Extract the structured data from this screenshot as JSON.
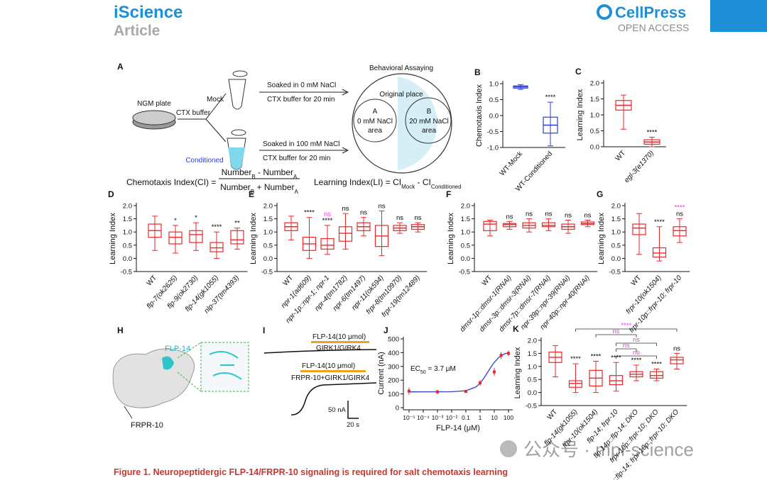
{
  "header": {
    "journal": "iScience",
    "type": "Article",
    "publisher": "CellPress",
    "access": "OPEN ACCESS"
  },
  "panel_a": {
    "letter": "A",
    "plate": "NGM plate",
    "buffer": "CTX buffer",
    "mock": "Mock",
    "conditioned": "Conditioned",
    "soak1": "Soaked in 0 mM NaCl",
    "soak1_time": "CTX buffer for 20 min",
    "soak2": "Soaked in 100 mM NaCl",
    "soak2_time": "CTX buffer for 20 min",
    "assay": "Behavioral Assaying",
    "origin": "Original place",
    "area_a": [
      "A",
      "0 mM NaCl",
      "area"
    ],
    "area_b": [
      "B",
      "20 mM NaCl",
      "area"
    ],
    "ci_lhs": "Chemotaxis Index(CI) =",
    "ci_num": [
      "Number",
      "B",
      " - Number",
      "A"
    ],
    "ci_den": [
      "Number",
      "B",
      " + Number",
      "A"
    ],
    "li": [
      "Learning Index(LI) = CI",
      "Mock",
      " - CI",
      "Conditioned"
    ]
  },
  "panels": {
    "B": {
      "letter": "B",
      "ylabel": "Chemotaxis Index",
      "color": "#2c3fd0",
      "ylim": [
        -1,
        1
      ],
      "yticks": [
        {
          "value": 1,
          "label": "1.0"
        },
        0.5,
        {
          "value": 0,
          "label": "0.0"
        },
        -0.5,
        {
          "value": -1,
          "label": "-1.0"
        }
      ],
      "groups": [
        {
          "label": "WT-Mock",
          "stats": [
            0.82,
            0.86,
            0.9,
            0.93,
            0.97
          ],
          "sig": []
        },
        {
          "label": "WT-Conditioned",
          "stats": [
            -0.95,
            -0.55,
            -0.3,
            -0.05,
            0.42
          ],
          "sig": [
            {
              "label": "****",
              "color": "#000000"
            }
          ]
        }
      ]
    },
    "C": {
      "letter": "C",
      "ylabel": "Learning Index",
      "color": "#e8282b",
      "ylim": [
        0,
        2
      ],
      "yticks": [
        {
          "value": 2,
          "label": "2.0"
        },
        1.5,
        {
          "value": 1,
          "label": "1.0"
        },
        0.5,
        {
          "value": 0,
          "label": "0.0"
        }
      ],
      "groups": [
        {
          "label": "WT",
          "stats": [
            0.55,
            1.15,
            1.3,
            1.45,
            1.62
          ],
          "sig": []
        },
        {
          "label": "egl-3(e1370)",
          "stats": [
            0,
            0.08,
            0.15,
            0.22,
            0.3
          ],
          "sig": [
            {
              "label": "****",
              "color": "#000000"
            }
          ]
        }
      ]
    },
    "D": {
      "letter": "D",
      "ylabel": "Learning Index",
      "color": "#e8282b",
      "ylim": [
        -0.5,
        2
      ],
      "yticks": [
        {
          "value": 2,
          "label": "2.0"
        },
        1.5,
        {
          "value": 1,
          "label": "1.0"
        },
        0.5,
        {
          "value": 0,
          "label": "0.0"
        },
        -0.5
      ],
      "groups": [
        {
          "label": "WT",
          "stats": [
            0.3,
            0.8,
            1.05,
            1.3,
            1.6
          ],
          "sig": []
        },
        {
          "label": "flp-7(ok2625)",
          "stats": [
            0.2,
            0.55,
            0.8,
            1.0,
            1.25
          ],
          "sig": [
            {
              "label": "*",
              "color": "#000000"
            }
          ]
        },
        {
          "label": "flp-9(ok2730)",
          "stats": [
            0.3,
            0.6,
            0.9,
            1.05,
            1.35
          ],
          "sig": [
            {
              "label": "*",
              "color": "#000000"
            }
          ]
        },
        {
          "label": "flp-14(gk1055)",
          "stats": [
            0,
            0.25,
            0.4,
            0.6,
            1.0
          ],
          "sig": [
            {
              "label": "****",
              "color": "#000000"
            }
          ]
        },
        {
          "label": "nlp-37(tm4393)",
          "stats": [
            0.35,
            0.55,
            0.7,
            1.05,
            1.15
          ],
          "sig": [
            {
              "label": "**",
              "color": "#000000"
            }
          ]
        }
      ]
    },
    "E": {
      "letter": "E",
      "ylabel": "Learning Index",
      "color": "#e8282b",
      "ylim": [
        -0.5,
        2
      ],
      "yticks": [
        {
          "value": 2,
          "label": "2.0"
        },
        1.5,
        {
          "value": 1,
          "label": "1.0"
        },
        0.5,
        {
          "value": 0,
          "label": "0.0"
        },
        -0.5
      ],
      "groups": [
        {
          "label": "WT",
          "stats": [
            0.7,
            1.05,
            1.2,
            1.35,
            1.6
          ],
          "sig": []
        },
        {
          "label": "npr-1(ad609)",
          "stats": [
            0,
            0.3,
            0.55,
            0.8,
            1.55
          ],
          "sig": [
            {
              "label": "****",
              "color": "#000000"
            }
          ]
        },
        {
          "label": "npr-1p::npr-1; npr-1",
          "stats": [
            0.15,
            0.35,
            0.5,
            0.75,
            1.25
          ],
          "sig": [
            {
              "label": "****",
              "color": "#000000"
            },
            {
              "label": "ns",
              "color": "#e040e0"
            }
          ]
        },
        {
          "label": "npr-4(tm1782)",
          "stats": [
            0.35,
            0.65,
            0.95,
            1.2,
            1.7
          ],
          "sig": [
            {
              "label": "ns",
              "color": "#000000"
            }
          ]
        },
        {
          "label": "npr-6(tm1497)",
          "stats": [
            0.85,
            1.05,
            1.2,
            1.35,
            1.55
          ],
          "sig": [
            {
              "label": "ns",
              "color": "#000000"
            }
          ]
        },
        {
          "label": "npr-11(ok594)",
          "stats": [
            0.1,
            0.45,
            0.85,
            1.25,
            1.8
          ],
          "sig": [
            {
              "label": "ns",
              "color": "#000000"
            }
          ]
        },
        {
          "label": "frpr-8(tm10970)",
          "stats": [
            0.95,
            1.05,
            1.15,
            1.25,
            1.35
          ],
          "sig": [
            {
              "label": "ns",
              "color": "#000000"
            }
          ]
        },
        {
          "label": "frpr-19(tm12489)",
          "stats": [
            1.0,
            1.1,
            1.2,
            1.28,
            1.35
          ],
          "sig": [
            {
              "label": "ns",
              "color": "#000000"
            }
          ]
        }
      ]
    },
    "F": {
      "letter": "F",
      "ylabel": "Learning Index",
      "color": "#e8282b",
      "ylim": [
        -0.5,
        2
      ],
      "yticks": [
        {
          "value": 2,
          "label": "2.0"
        },
        1.5,
        {
          "value": 1,
          "label": "1.0"
        },
        0.5,
        {
          "value": 0,
          "label": "0.0"
        },
        -0.5
      ],
      "groups": [
        {
          "label": "WT",
          "stats": [
            0.85,
            1.05,
            1.3,
            1.4,
            1.45
          ],
          "sig": []
        },
        {
          "label": "dmsr-1p::dmsr-1(RNAi)",
          "stats": [
            1.1,
            1.2,
            1.28,
            1.32,
            1.4
          ],
          "sig": [
            {
              "label": "ns",
              "color": "#000000"
            }
          ]
        },
        {
          "label": "dmsr-3p::dmsr-3(RNAi)",
          "stats": [
            1.0,
            1.15,
            1.25,
            1.35,
            1.5
          ],
          "sig": [
            {
              "label": "ns",
              "color": "#000000"
            }
          ]
        },
        {
          "label": "dmsr-7p::dmsr-7(RNAi)",
          "stats": [
            1.05,
            1.2,
            1.25,
            1.35,
            1.5
          ],
          "sig": [
            {
              "label": "ns",
              "color": "#000000"
            }
          ]
        },
        {
          "label": "npr-39p::npr-39(RNAi)",
          "stats": [
            0.95,
            1.1,
            1.2,
            1.3,
            1.45
          ],
          "sig": [
            {
              "label": "ns",
              "color": "#000000"
            }
          ]
        },
        {
          "label": "npr-40p::npr-40(RNAi)",
          "stats": [
            1.2,
            1.28,
            1.32,
            1.38,
            1.45
          ],
          "sig": [
            {
              "label": "ns",
              "color": "#000000"
            }
          ]
        }
      ]
    },
    "G": {
      "letter": "G",
      "ylabel": "Learning Index",
      "color": "#e8282b",
      "ylim": [
        -0.5,
        2
      ],
      "yticks": [
        {
          "value": 2,
          "label": "2.0"
        },
        1.5,
        {
          "value": 1,
          "label": "1.0"
        },
        0.5,
        {
          "value": 0,
          "label": "0.0"
        },
        -0.5
      ],
      "groups": [
        {
          "label": "WT",
          "stats": [
            0.15,
            0.9,
            1.15,
            1.3,
            1.7
          ],
          "sig": []
        },
        {
          "label": "frpr-10(ok1504)",
          "stats": [
            -0.1,
            0.05,
            0.2,
            0.4,
            1.2
          ],
          "sig": [
            {
              "label": "****",
              "color": "#000000"
            }
          ]
        },
        {
          "label": "frpr-10p::frpr-10; frpr-10",
          "stats": [
            0.6,
            0.85,
            1.05,
            1.2,
            1.5
          ],
          "sig": [
            {
              "label": "ns",
              "color": "#000000"
            },
            {
              "label": "****",
              "color": "#e040e0"
            }
          ]
        }
      ]
    },
    "K": {
      "letter": "K",
      "ylabel": "Learning Index",
      "color": "#e8282b",
      "ylim": [
        -0.5,
        2
      ],
      "yticks": [
        {
          "value": 2,
          "label": "2.0"
        },
        1.5,
        {
          "value": 1,
          "label": "1.0"
        },
        0.5,
        {
          "value": 0,
          "label": "0.0"
        },
        -0.5
      ],
      "groups": [
        {
          "label": "WT",
          "stats": [
            0.6,
            1.15,
            1.35,
            1.55,
            1.8
          ],
          "sig": []
        },
        {
          "label": "flp-14(gk1055)",
          "stats": [
            0,
            0.2,
            0.35,
            0.45,
            1.1
          ],
          "sig": [
            {
              "label": "****",
              "color": "#000000"
            }
          ]
        },
        {
          "label": "frpr-10(ok1504)",
          "stats": [
            0,
            0.25,
            0.55,
            0.85,
            1.2
          ],
          "sig": [
            {
              "label": "****",
              "color": "#000000"
            }
          ]
        },
        {
          "label": "flp-14; frpr-10",
          "stats": [
            0.05,
            0.3,
            0.45,
            0.65,
            1.15
          ],
          "sig": [
            {
              "label": "****",
              "color": "#000000"
            }
          ]
        },
        {
          "label": "flp-14p::flp-14; DKO",
          "stats": [
            0.45,
            0.6,
            0.7,
            0.8,
            1.05
          ],
          "sig": [
            {
              "label": "****",
              "color": "#000000"
            }
          ]
        },
        {
          "label": "frpr-10p::frpr-10; DKO",
          "stats": [
            0.45,
            0.55,
            0.65,
            0.8,
            0.9
          ],
          "sig": [
            {
              "label": "****",
              "color": "#000000"
            }
          ]
        },
        {
          "label": "flp-14p::flp-14; frpr-10p::frpr-10; DKO",
          "stats": [
            0.9,
            1.1,
            1.25,
            1.35,
            1.5
          ],
          "sig": [
            {
              "label": "ns",
              "color": "#000000"
            }
          ]
        }
      ],
      "comparisons": [
        {
          "label": "****",
          "color": "#e040e0"
        },
        {
          "label": "ns",
          "color": "#e040e0"
        },
        {
          "label": "ns",
          "color": "#e040e0"
        },
        {
          "label": "ns",
          "color": "#e040e0"
        },
        {
          "label": "ns",
          "color": "#e040e0"
        }
      ]
    }
  },
  "panel_h": {
    "letter": "H",
    "ligand": "FLP-14",
    "receptor": "FRPR-10"
  },
  "panel_i": {
    "letter": "I",
    "trace1_drug": "FLP-14(10 μmol)",
    "trace1_cells": "GIRK1/GIRK4",
    "trace2_drug": "FLP-14(10 μmol)",
    "trace2_cells": "FRPR-10+GIRK1/GIRK4",
    "scale_y": "50 nA",
    "scale_x": "20 s"
  },
  "chart_data": {
    "type": "scatter",
    "letter": "J",
    "xlabel": "FLP-14 (μM)",
    "ylabel": "Current (nA)",
    "log_x": true,
    "color": "#e8282b",
    "fit_color": "#2c3fd0",
    "ec50": [
      "EC",
      "50",
      " = 3.7 μM"
    ],
    "xlim": [
      4e-06,
      200
    ],
    "xticks": [
      {
        "value": 1e-05,
        "label": "10⁻⁵"
      },
      {
        "value": 0.0001,
        "label": "10⁻⁴"
      },
      {
        "value": 0.001,
        "label": "10⁻³"
      },
      {
        "value": 0.01,
        "label": "10⁻²"
      },
      0.1,
      1,
      10,
      100
    ],
    "ylim": [
      0,
      500
    ],
    "yticks": [
      0,
      100,
      200,
      300,
      400,
      500
    ],
    "x": [
      1e-05,
      0.001,
      0.1,
      1,
      10,
      30,
      100
    ],
    "values": [
      120,
      115,
      118,
      180,
      260,
      380,
      395
    ],
    "errors": [
      25,
      15,
      8,
      20,
      30,
      25,
      20
    ],
    "fit": {
      "x": [
        1e-05,
        0.01,
        0.1,
        0.5,
        1,
        2,
        3.7,
        8,
        20,
        50,
        100
      ],
      "values": [
        115,
        116,
        123,
        150,
        178,
        219,
        263,
        317,
        364,
        390,
        400
      ]
    }
  },
  "watermark": "公众号 · mpi-science",
  "caption": "Figure 1. Neuropeptidergic FLP-14/FRPR-10 signaling is required for salt chemotaxis learning"
}
